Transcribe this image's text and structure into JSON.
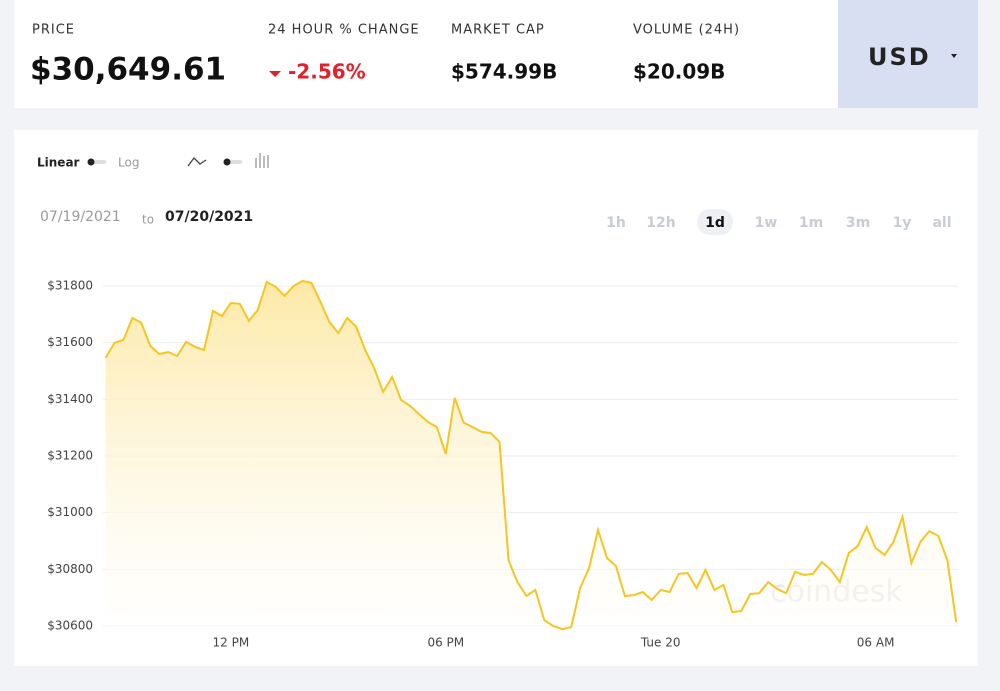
{
  "header": {
    "stats": [
      {
        "label": "PRICE",
        "value": "$30,649.61"
      },
      {
        "label": "24 HOUR % CHANGE",
        "value": "-2.56%"
      },
      {
        "label": "MARKET CAP",
        "value": "$574.99B"
      },
      {
        "label": "VOLUME (24H)",
        "value": "$20.09B"
      }
    ],
    "currency": "USD"
  },
  "controls": {
    "linear": "Linear",
    "log": "Log",
    "date_from": "07/19/2021",
    "date_sep": "to",
    "date_to": "07/20/2021",
    "ranges": [
      "1h",
      "12h",
      "1d",
      "1w",
      "1m",
      "3m",
      "1y",
      "all"
    ],
    "active_range": "1d"
  },
  "watermark": "coindesk",
  "chart_data": {
    "type": "area",
    "color": "#f3c623",
    "grid": true,
    "x": [
      8.5,
      8.75,
      9,
      9.25,
      9.5,
      9.75,
      10,
      10.25,
      10.5,
      10.75,
      11,
      11.25,
      11.5,
      11.75,
      12,
      12.25,
      12.5,
      12.75,
      13,
      13.25,
      13.5,
      13.75,
      14,
      14.25,
      14.5,
      14.75,
      15,
      15.25,
      15.5,
      15.75,
      16,
      16.25,
      16.5,
      16.75,
      17,
      17.25,
      17.5,
      17.75,
      18,
      18.25,
      18.5,
      18.75,
      19,
      19.25,
      19.5,
      19.75,
      20,
      20.25,
      20.5,
      20.75,
      21,
      21.25,
      21.5,
      21.75,
      22,
      22.25,
      22.5,
      22.75,
      23,
      23.25,
      23.5,
      23.75,
      24,
      24.25,
      24.5,
      24.75,
      25,
      25.25,
      25.5,
      25.75,
      26,
      26.25,
      26.5,
      26.75,
      27,
      27.25,
      27.5,
      27.75,
      28,
      28.25,
      28.5,
      28.75,
      29,
      29.25,
      29.5,
      29.75,
      30,
      30.25,
      30.5,
      30.75,
      31,
      31.25,
      31.5,
      31.75,
      32,
      32.25
    ],
    "values": [
      31546,
      31599,
      31610,
      31687,
      31670,
      31588,
      31560,
      31567,
      31553,
      31603,
      31585,
      31574,
      31712,
      31694,
      31740,
      31737,
      31677,
      31715,
      31814,
      31797,
      31765,
      31800,
      31818,
      31811,
      31744,
      31673,
      31634,
      31687,
      31656,
      31574,
      31511,
      31426,
      31479,
      31398,
      31377,
      31348,
      31320,
      31302,
      31207,
      31405,
      31317,
      31302,
      31285,
      31281,
      31250,
      30833,
      30755,
      30706,
      30727,
      30621,
      30600,
      30589,
      30596,
      30734,
      30805,
      30939,
      30840,
      30812,
      30706,
      30709,
      30720,
      30692,
      30727,
      30720,
      30784,
      30787,
      30734,
      30798,
      30727,
      30745,
      30649,
      30653,
      30713,
      30716,
      30755,
      30731,
      30716,
      30791,
      30780,
      30784,
      30826,
      30798,
      30755,
      30858,
      30882,
      30949,
      30875,
      30851,
      30897,
      30985,
      30822,
      30897,
      30935,
      30918,
      30833,
      30614
    ],
    "xlim": [
      8.43,
      32.3
    ],
    "xticks": [
      {
        "value": 12,
        "label": "12 PM"
      },
      {
        "value": 18,
        "label": "06 PM"
      },
      {
        "value": 24,
        "label": "Tue 20"
      },
      {
        "value": 30,
        "label": "06 AM"
      }
    ],
    "ylim": [
      30586,
      31874
    ],
    "yticks": [
      {
        "value": 30600,
        "label": "$30600"
      },
      {
        "value": 30800,
        "label": "$30800"
      },
      {
        "value": 31000,
        "label": "$31000"
      },
      {
        "value": 31200,
        "label": "$31200"
      },
      {
        "value": 31400,
        "label": "$31400"
      },
      {
        "value": 31600,
        "label": "$31600"
      },
      {
        "value": 31800,
        "label": "$31800"
      }
    ]
  }
}
